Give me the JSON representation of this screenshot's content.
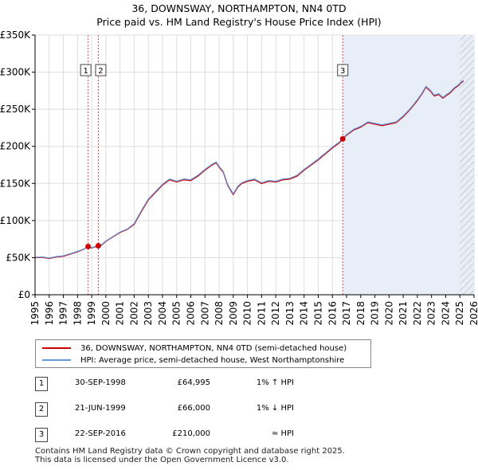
{
  "chart_data": {
    "type": "line",
    "title": "36, DOWNSWAY, NORTHAMPTON, NN4 0TD",
    "subtitle": "Price paid vs. HM Land Registry's House Price Index (HPI)",
    "xlim": [
      1995,
      2026
    ],
    "ylim": [
      0,
      350000
    ],
    "y_ticks": [
      0,
      50000,
      100000,
      150000,
      200000,
      250000,
      300000,
      350000
    ],
    "y_tick_labels": [
      "£0",
      "£50K",
      "£100K",
      "£150K",
      "£200K",
      "£250K",
      "£300K",
      "£350K"
    ],
    "x_ticks": [
      1995,
      1996,
      1997,
      1998,
      1999,
      2000,
      2001,
      2002,
      2003,
      2004,
      2005,
      2006,
      2007,
      2008,
      2009,
      2010,
      2011,
      2012,
      2013,
      2014,
      2015,
      2016,
      2017,
      2018,
      2019,
      2020,
      2021,
      2022,
      2023,
      2024,
      2025,
      2026
    ],
    "x_tick_labels": [
      "1995",
      "1996",
      "1997",
      "1998",
      "1999",
      "2000",
      "2001",
      "2002",
      "2003",
      "2004",
      "2005",
      "2006",
      "2007",
      "2008",
      "2009",
      "2010",
      "2011",
      "2012",
      "2013",
      "2014",
      "2015",
      "2016",
      "2017",
      "2018",
      "2019",
      "2020",
      "2021",
      "2022",
      "2023",
      "2024",
      "2025",
      "2026"
    ],
    "grid": true,
    "shaded_region": {
      "from": 2016.73,
      "to": 2026
    },
    "hatched_region": {
      "from": 2025.0,
      "to": 2026
    },
    "series": [
      {
        "name": "36, DOWNSWAY, NORTHAMPTON, NN4 0TD (semi-detached house)",
        "color": "#cc0000",
        "x": [
          1995.0,
          1995.5,
          1996.0,
          1996.5,
          1997.0,
          1997.5,
          1998.0,
          1998.5,
          1998.75,
          1999.0,
          1999.47,
          1999.7,
          2000.0,
          2000.5,
          2001.0,
          2001.5,
          2002.0,
          2002.5,
          2003.0,
          2003.5,
          2004.0,
          2004.5,
          2005.0,
          2005.5,
          2006.0,
          2006.5,
          2007.0,
          2007.5,
          2007.8,
          2008.0,
          2008.3,
          2008.6,
          2009.0,
          2009.3,
          2009.6,
          2010.0,
          2010.5,
          2011.0,
          2011.5,
          2012.0,
          2012.5,
          2013.0,
          2013.5,
          2014.0,
          2014.5,
          2015.0,
          2015.5,
          2016.0,
          2016.5,
          2016.73,
          2017.0,
          2017.5,
          2018.0,
          2018.5,
          2019.0,
          2019.5,
          2020.0,
          2020.5,
          2021.0,
          2021.5,
          2022.0,
          2022.3,
          2022.6,
          2022.9,
          2023.2,
          2023.5,
          2023.8,
          2024.0,
          2024.3,
          2024.6,
          2024.9,
          2025.1,
          2025.25
        ],
        "values": [
          50000,
          50500,
          49000,
          51000,
          52000,
          55000,
          58000,
          62000,
          64995,
          63000,
          66000,
          67000,
          72000,
          78000,
          84000,
          88000,
          95000,
          112000,
          128000,
          138000,
          148000,
          155000,
          152000,
          155000,
          154000,
          160000,
          168000,
          175000,
          178000,
          172000,
          165000,
          148000,
          135000,
          145000,
          150000,
          153000,
          155000,
          150000,
          153000,
          152000,
          155000,
          156000,
          160000,
          168000,
          175000,
          182000,
          190000,
          198000,
          205000,
          210000,
          215000,
          222000,
          226000,
          232000,
          230000,
          228000,
          230000,
          232000,
          240000,
          250000,
          262000,
          270000,
          280000,
          275000,
          268000,
          270000,
          265000,
          268000,
          272000,
          278000,
          282000,
          286000,
          288000
        ]
      },
      {
        "name": "HPI: Average price, semi-detached house, West Northamptonshire",
        "color": "#6699dd",
        "x": [
          1995.0,
          1995.5,
          1996.0,
          1996.5,
          1997.0,
          1997.5,
          1998.0,
          1998.5,
          1998.75,
          1999.0,
          1999.47,
          1999.7,
          2000.0,
          2000.5,
          2001.0,
          2001.5,
          2002.0,
          2002.5,
          2003.0,
          2003.5,
          2004.0,
          2004.5,
          2005.0,
          2005.5,
          2006.0,
          2006.5,
          2007.0,
          2007.5,
          2007.8,
          2008.0,
          2008.3,
          2008.6,
          2009.0,
          2009.3,
          2009.6,
          2010.0,
          2010.5,
          2011.0,
          2011.5,
          2012.0,
          2012.5,
          2013.0,
          2013.5,
          2014.0,
          2014.5,
          2015.0,
          2015.5,
          2016.0,
          2016.5,
          2016.73,
          2017.0,
          2017.5,
          2018.0,
          2018.5,
          2019.0,
          2019.5,
          2020.0,
          2020.5,
          2021.0,
          2021.5,
          2022.0,
          2022.3,
          2022.6,
          2022.9,
          2023.2,
          2023.5,
          2023.8,
          2024.0,
          2024.3,
          2024.6,
          2024.9,
          2025.1,
          2025.25
        ],
        "values": [
          50500,
          51000,
          49500,
          51500,
          52500,
          55500,
          58500,
          62000,
          64300,
          63500,
          66700,
          67500,
          72500,
          78500,
          84500,
          88500,
          96000,
          113000,
          129000,
          139000,
          149000,
          156000,
          153000,
          156000,
          155000,
          161000,
          169000,
          176000,
          179000,
          173000,
          166000,
          149000,
          136000,
          146000,
          151000,
          154000,
          156000,
          151000,
          154000,
          153000,
          156000,
          157000,
          161000,
          169000,
          176000,
          183000,
          191000,
          199000,
          206000,
          210500,
          216000,
          223000,
          227000,
          233000,
          231000,
          229000,
          231000,
          233000,
          241000,
          251000,
          263000,
          271000,
          281000,
          276000,
          269000,
          271000,
          266000,
          269000,
          273000,
          279000,
          283000,
          287000,
          289000
        ]
      }
    ],
    "sales": [
      {
        "num": "1",
        "x": 1998.75,
        "value": 64995
      },
      {
        "num": "2",
        "x": 1999.47,
        "value": 66000
      },
      {
        "num": "3",
        "x": 2016.73,
        "value": 210000
      }
    ]
  },
  "legend": {
    "property_label": "36, DOWNSWAY, NORTHAMPTON, NN4 0TD (semi-detached house)",
    "hpi_label": "HPI: Average price, semi-detached house, West Northamptonshire"
  },
  "sales_table": [
    {
      "num": "1",
      "date": "30-SEP-1998",
      "price": "£64,995",
      "hpi": "1% ↑ HPI"
    },
    {
      "num": "2",
      "date": "21-JUN-1999",
      "price": "£66,000",
      "hpi": "1% ↓ HPI"
    },
    {
      "num": "3",
      "date": "22-SEP-2016",
      "price": "£210,000",
      "hpi": "≈ HPI"
    }
  ],
  "footer": {
    "line1": "Contains HM Land Registry data © Crown copyright and database right 2025.",
    "line2": "This data is licensed under the Open Government Licence v3.0."
  }
}
